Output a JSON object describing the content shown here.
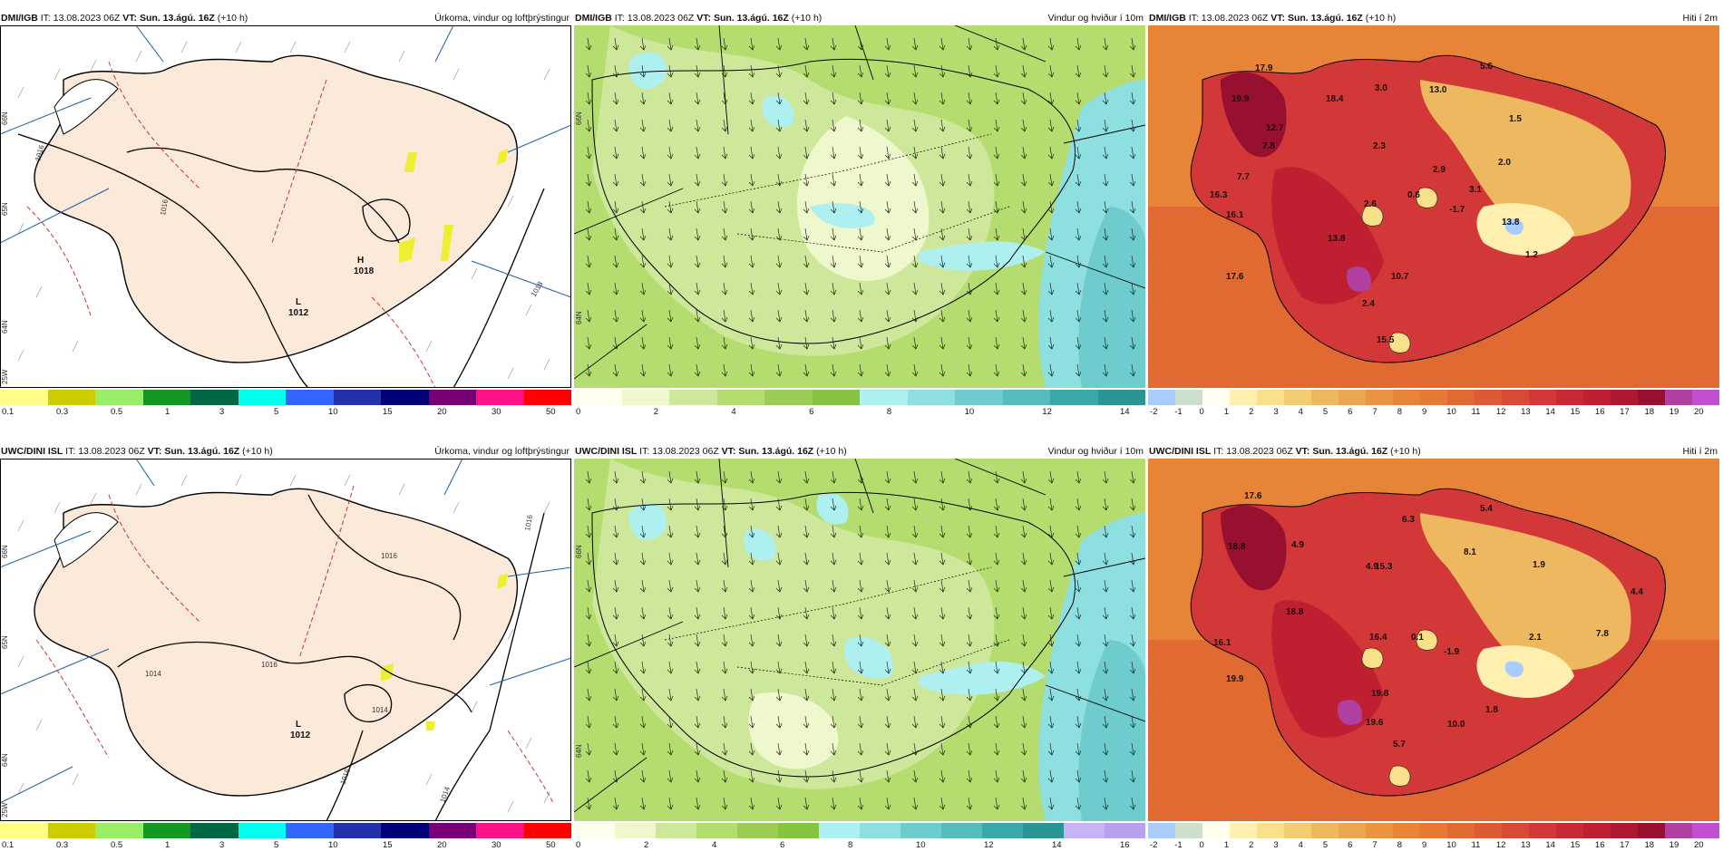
{
  "precip_colors": [
    "#ffff88",
    "#cccc00",
    "#99ee66",
    "#119922",
    "#006644",
    "#00ffee",
    "#3366ff",
    "#2233aa",
    "#000077",
    "#770077",
    "#ff1188",
    "#ff0000"
  ],
  "wind_colors_top": [
    "#ffffee",
    "#eef8cc",
    "#cde89a",
    "#b5dc6e",
    "#9ccc55",
    "#86c440",
    "#aef0f0",
    "#8ee0e0",
    "#6ecccc",
    "#55bcbc",
    "#3aa8a8",
    "#2b9494"
  ],
  "wind_colors_bottom": [
    "#ffffee",
    "#eef8cc",
    "#cde89a",
    "#b5dc6e",
    "#9ccc55",
    "#86c440",
    "#aef0f0",
    "#8ee0e0",
    "#6ecccc",
    "#55bcbc",
    "#3aa8a8",
    "#2b9494",
    "#c8b4f4",
    "#b8a0ee"
  ],
  "temp_colors": [
    "#aaccff",
    "#cce0cc",
    "#ffffee",
    "#fff0b0",
    "#f8e08a",
    "#f2cc70",
    "#eeb860",
    "#eaa650",
    "#e89440",
    "#e88438",
    "#e67a34",
    "#e06a32",
    "#dc5a34",
    "#d84a34",
    "#d23838",
    "#c82a34",
    "#be2032",
    "#ae1830",
    "#981030",
    "#b040a0",
    "#c050d0"
  ],
  "rows": [
    {
      "precip": {
        "model": "DMI/IGB",
        "it_label": "IT:",
        "it": "13.08.2023 06Z",
        "vt_label": "VT:",
        "vt": "Sun. 13.ágú. 16Z",
        "lead": "(+10 h)",
        "title": "Úrkoma, vindur og loftþrýstingur",
        "ticks": [
          "0.1",
          "0.3",
          "0.5",
          "1",
          "3",
          "5",
          "10",
          "15",
          "20",
          "30",
          "50"
        ],
        "pressure": [
          {
            "letter": "H",
            "value": "1018"
          },
          {
            "letter": "L",
            "value": "1012"
          }
        ],
        "isobars": [
          "1016",
          "1016",
          "1018"
        ],
        "grid": [
          "66N",
          "65N",
          "64N",
          "25W"
        ]
      },
      "wind": {
        "model": "DMI/IGB",
        "it_label": "IT:",
        "it": "13.08.2023 06Z",
        "vt_label": "VT:",
        "vt": "Sun. 13.ágú. 16Z",
        "lead": "(+10 h)",
        "title": "Vindur og hviður í 10m",
        "ticks": [
          "0",
          "2",
          "4",
          "6",
          "8",
          "10",
          "12",
          "14"
        ],
        "grid": [
          "66N",
          "64N"
        ]
      },
      "temp": {
        "model": "DMI/IGB",
        "it_label": "IT:",
        "it": "13.08.2023 06Z",
        "vt_label": "VT:",
        "vt": "Sun. 13.ágú. 16Z",
        "lead": "(+10 h)",
        "title": "Hiti í 2m",
        "ticks": [
          "-2",
          "-1",
          "0",
          "1",
          "2",
          "3",
          "4",
          "5",
          "6",
          "7",
          "8",
          "9",
          "10",
          "11",
          "12",
          "13",
          "14",
          "15",
          "16",
          "17",
          "18",
          "19",
          "20"
        ],
        "values": [
          "17.9",
          "19.9",
          "12.7",
          "18.4",
          "3.0",
          "13.0",
          "5.6",
          "7.8",
          "2.3",
          "1.5",
          "7.7",
          "2.9",
          "2.0",
          "16.3",
          "2.6",
          "0.6",
          "3.1",
          "16.1",
          "-1.7",
          "13.8",
          "13.8",
          "1.2",
          "17.6",
          "10.7",
          "2.4",
          "15.5"
        ]
      }
    },
    {
      "precip": {
        "model": "UWC/DINI ISL",
        "it_label": "IT:",
        "it": "13.08.2023 06Z",
        "vt_label": "VT:",
        "vt": "Sun. 13.ágú. 16Z",
        "lead": "(+10 h)",
        "title": "Úrkoma, vindur og loftþrýstingur",
        "ticks": [
          "0.1",
          "0.3",
          "0.5",
          "1",
          "3",
          "5",
          "10",
          "15",
          "20",
          "30",
          "50"
        ],
        "pressure": [
          {
            "letter": "L",
            "value": "1012"
          }
        ],
        "isobars": [
          "1016",
          "1014",
          "1016",
          "1014",
          "1016",
          "1016",
          "1014"
        ],
        "grid": [
          "66N",
          "65N",
          "64N",
          "25W"
        ]
      },
      "wind": {
        "model": "UWC/DINI ISL",
        "it_label": "IT:",
        "it": "13.08.2023 06Z",
        "vt_label": "VT:",
        "vt": "Sun. 13.ágú. 16Z",
        "lead": "(+10 h)",
        "title": "Vindur og hviður í 10m",
        "ticks": [
          "0",
          "2",
          "4",
          "6",
          "8",
          "10",
          "12",
          "14",
          "16"
        ],
        "grid": [
          "66N",
          "64N"
        ]
      },
      "temp": {
        "model": "UWC/DINI ISL",
        "it_label": "IT:",
        "it": "13.08.2023 06Z",
        "vt_label": "VT:",
        "vt": "Sun. 13.ágú. 16Z",
        "lead": "(+10 h)",
        "title": "Hiti í 2m",
        "ticks": [
          "-2",
          "-1",
          "0",
          "1",
          "2",
          "3",
          "4",
          "5",
          "6",
          "7",
          "8",
          "9",
          "10",
          "11",
          "12",
          "13",
          "14",
          "15",
          "16",
          "17",
          "18",
          "19",
          "20"
        ],
        "values": [
          "17.6",
          "18.8",
          "4.9",
          "6.3",
          "5.4",
          "15.3",
          "4.9",
          "8.1",
          "1.9",
          "4.4",
          "18.8",
          "16.1",
          "16.4",
          "0.1",
          "2.1",
          "7.8",
          "19.9",
          "19.8",
          "-1.9",
          "19.6",
          "10.0",
          "1.8",
          "5.7"
        ]
      }
    }
  ]
}
